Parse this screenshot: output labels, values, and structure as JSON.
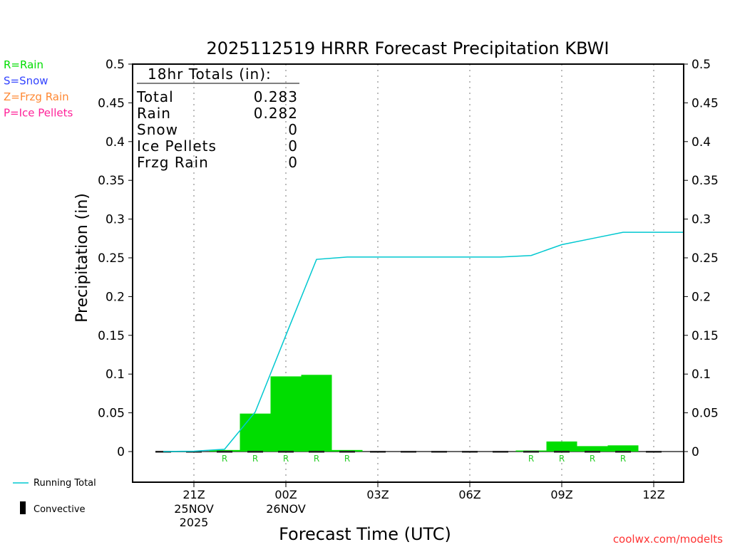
{
  "chart_data": {
    "type": "bar",
    "title": "2025112519 HRRR Forecast Precipitation KBWI",
    "xlabel": "Forecast Time (UTC)",
    "ylabel": "Precipitation  (in)",
    "ylim": [
      -0.04,
      0.5
    ],
    "xlim_hours_from_19Z": [
      0,
      18
    ],
    "y_ticks": [
      "0",
      "0.05",
      "0.1",
      "0.15",
      "0.2",
      "0.25",
      "0.3",
      "0.35",
      "0.4",
      "0.45",
      "0.5"
    ],
    "x_ticks": [
      {
        "hour": 2,
        "label": "21Z",
        "sub": [
          "25NOV",
          "2025"
        ]
      },
      {
        "hour": 5,
        "label": "00Z",
        "sub": [
          "26NOV"
        ]
      },
      {
        "hour": 8,
        "label": "03Z",
        "sub": []
      },
      {
        "hour": 11,
        "label": "06Z",
        "sub": []
      },
      {
        "hour": 14,
        "label": "09Z",
        "sub": []
      },
      {
        "hour": 17,
        "label": "12Z",
        "sub": []
      }
    ],
    "precip_bars": [
      {
        "hour": 3,
        "value": 0.002,
        "type": "R"
      },
      {
        "hour": 4,
        "value": 0.049,
        "type": "R"
      },
      {
        "hour": 5,
        "value": 0.097,
        "type": "R"
      },
      {
        "hour": 6,
        "value": 0.099,
        "type": "R"
      },
      {
        "hour": 7,
        "value": 0.002,
        "type": "R"
      },
      {
        "hour": 13,
        "value": 0.001,
        "type": "R"
      },
      {
        "hour": 14,
        "value": 0.013,
        "type": "R"
      },
      {
        "hour": 15,
        "value": 0.007,
        "type": "R"
      },
      {
        "hour": 16,
        "value": 0.008,
        "type": "R"
      }
    ],
    "convective_hours": [
      1,
      2,
      3,
      4,
      5,
      6,
      7,
      8,
      9,
      10,
      11,
      12,
      13,
      14,
      15,
      16,
      17
    ],
    "convective_values": 0,
    "running_total": {
      "x": [
        1,
        2,
        3,
        4,
        5,
        6,
        7,
        8,
        9,
        10,
        11,
        12,
        13,
        14,
        15,
        16,
        17,
        18
      ],
      "y": [
        0,
        0.0005,
        0.003,
        0.051,
        0.15,
        0.248,
        0.251,
        0.251,
        0.251,
        0.251,
        0.251,
        0.251,
        0.253,
        0.267,
        0.275,
        0.283,
        0.283,
        0.283
      ]
    },
    "colors": {
      "rain": "#00dd00",
      "running": "#00c8d0",
      "convective": "#000000",
      "snow": "#3344ff",
      "frzg": "#ff8833",
      "ice": "#ff2299",
      "watermark": "#ff3333"
    }
  },
  "legend_types": [
    {
      "label": "R=Rain",
      "color": "#00dd00"
    },
    {
      "label": "S=Snow",
      "color": "#3344ff"
    },
    {
      "label": "Z=Frzg Rain",
      "color": "#ff8833"
    },
    {
      "label": "P=Ice Pellets",
      "color": "#ff2299"
    }
  ],
  "legend_bottom": {
    "running": "Running Total",
    "convective": "Convective"
  },
  "totals": {
    "header": "18hr Totals (in):",
    "rows": [
      {
        "label": "Total",
        "value": "0.283"
      },
      {
        "label": "Rain",
        "value": "0.282"
      },
      {
        "label": "Snow",
        "value": "0"
      },
      {
        "label": "Ice Pellets",
        "value": "0"
      },
      {
        "label": "Frzg Rain",
        "value": "0"
      }
    ]
  },
  "watermark": "coolwx.com/modelts"
}
